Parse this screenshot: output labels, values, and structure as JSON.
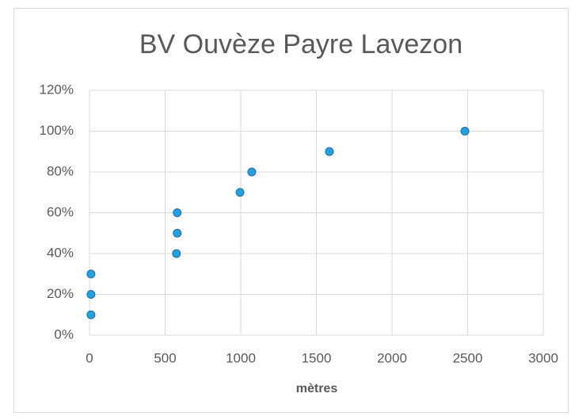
{
  "chart_data": {
    "type": "scatter",
    "title": "BV Ouvèze Payre Lavezon",
    "x_label": "mètres",
    "series": [
      {
        "color": "#1fa3e0",
        "stroke": "#2a6aa8",
        "x": [
          10,
          10,
          10,
          575,
          580,
          580,
          995,
          1073,
          1586,
          2482
        ],
        "values": [
          10,
          20,
          30,
          40,
          50,
          60,
          70,
          80,
          90,
          100
        ]
      }
    ],
    "xlim": [
      0,
      3000
    ],
    "xticks": [
      0,
      500,
      1000,
      1500,
      2000,
      2500,
      3000
    ],
    "ylim": [
      0,
      120
    ],
    "yticks": [
      {
        "value": 0,
        "label": "0%"
      },
      {
        "value": 20,
        "label": "20%"
      },
      {
        "value": 40,
        "label": "40%"
      },
      {
        "value": 60,
        "label": "60%"
      },
      {
        "value": 80,
        "label": "80%"
      },
      {
        "value": 100,
        "label": "100%"
      },
      {
        "value": 120,
        "label": "120%"
      }
    ],
    "grid": true
  }
}
